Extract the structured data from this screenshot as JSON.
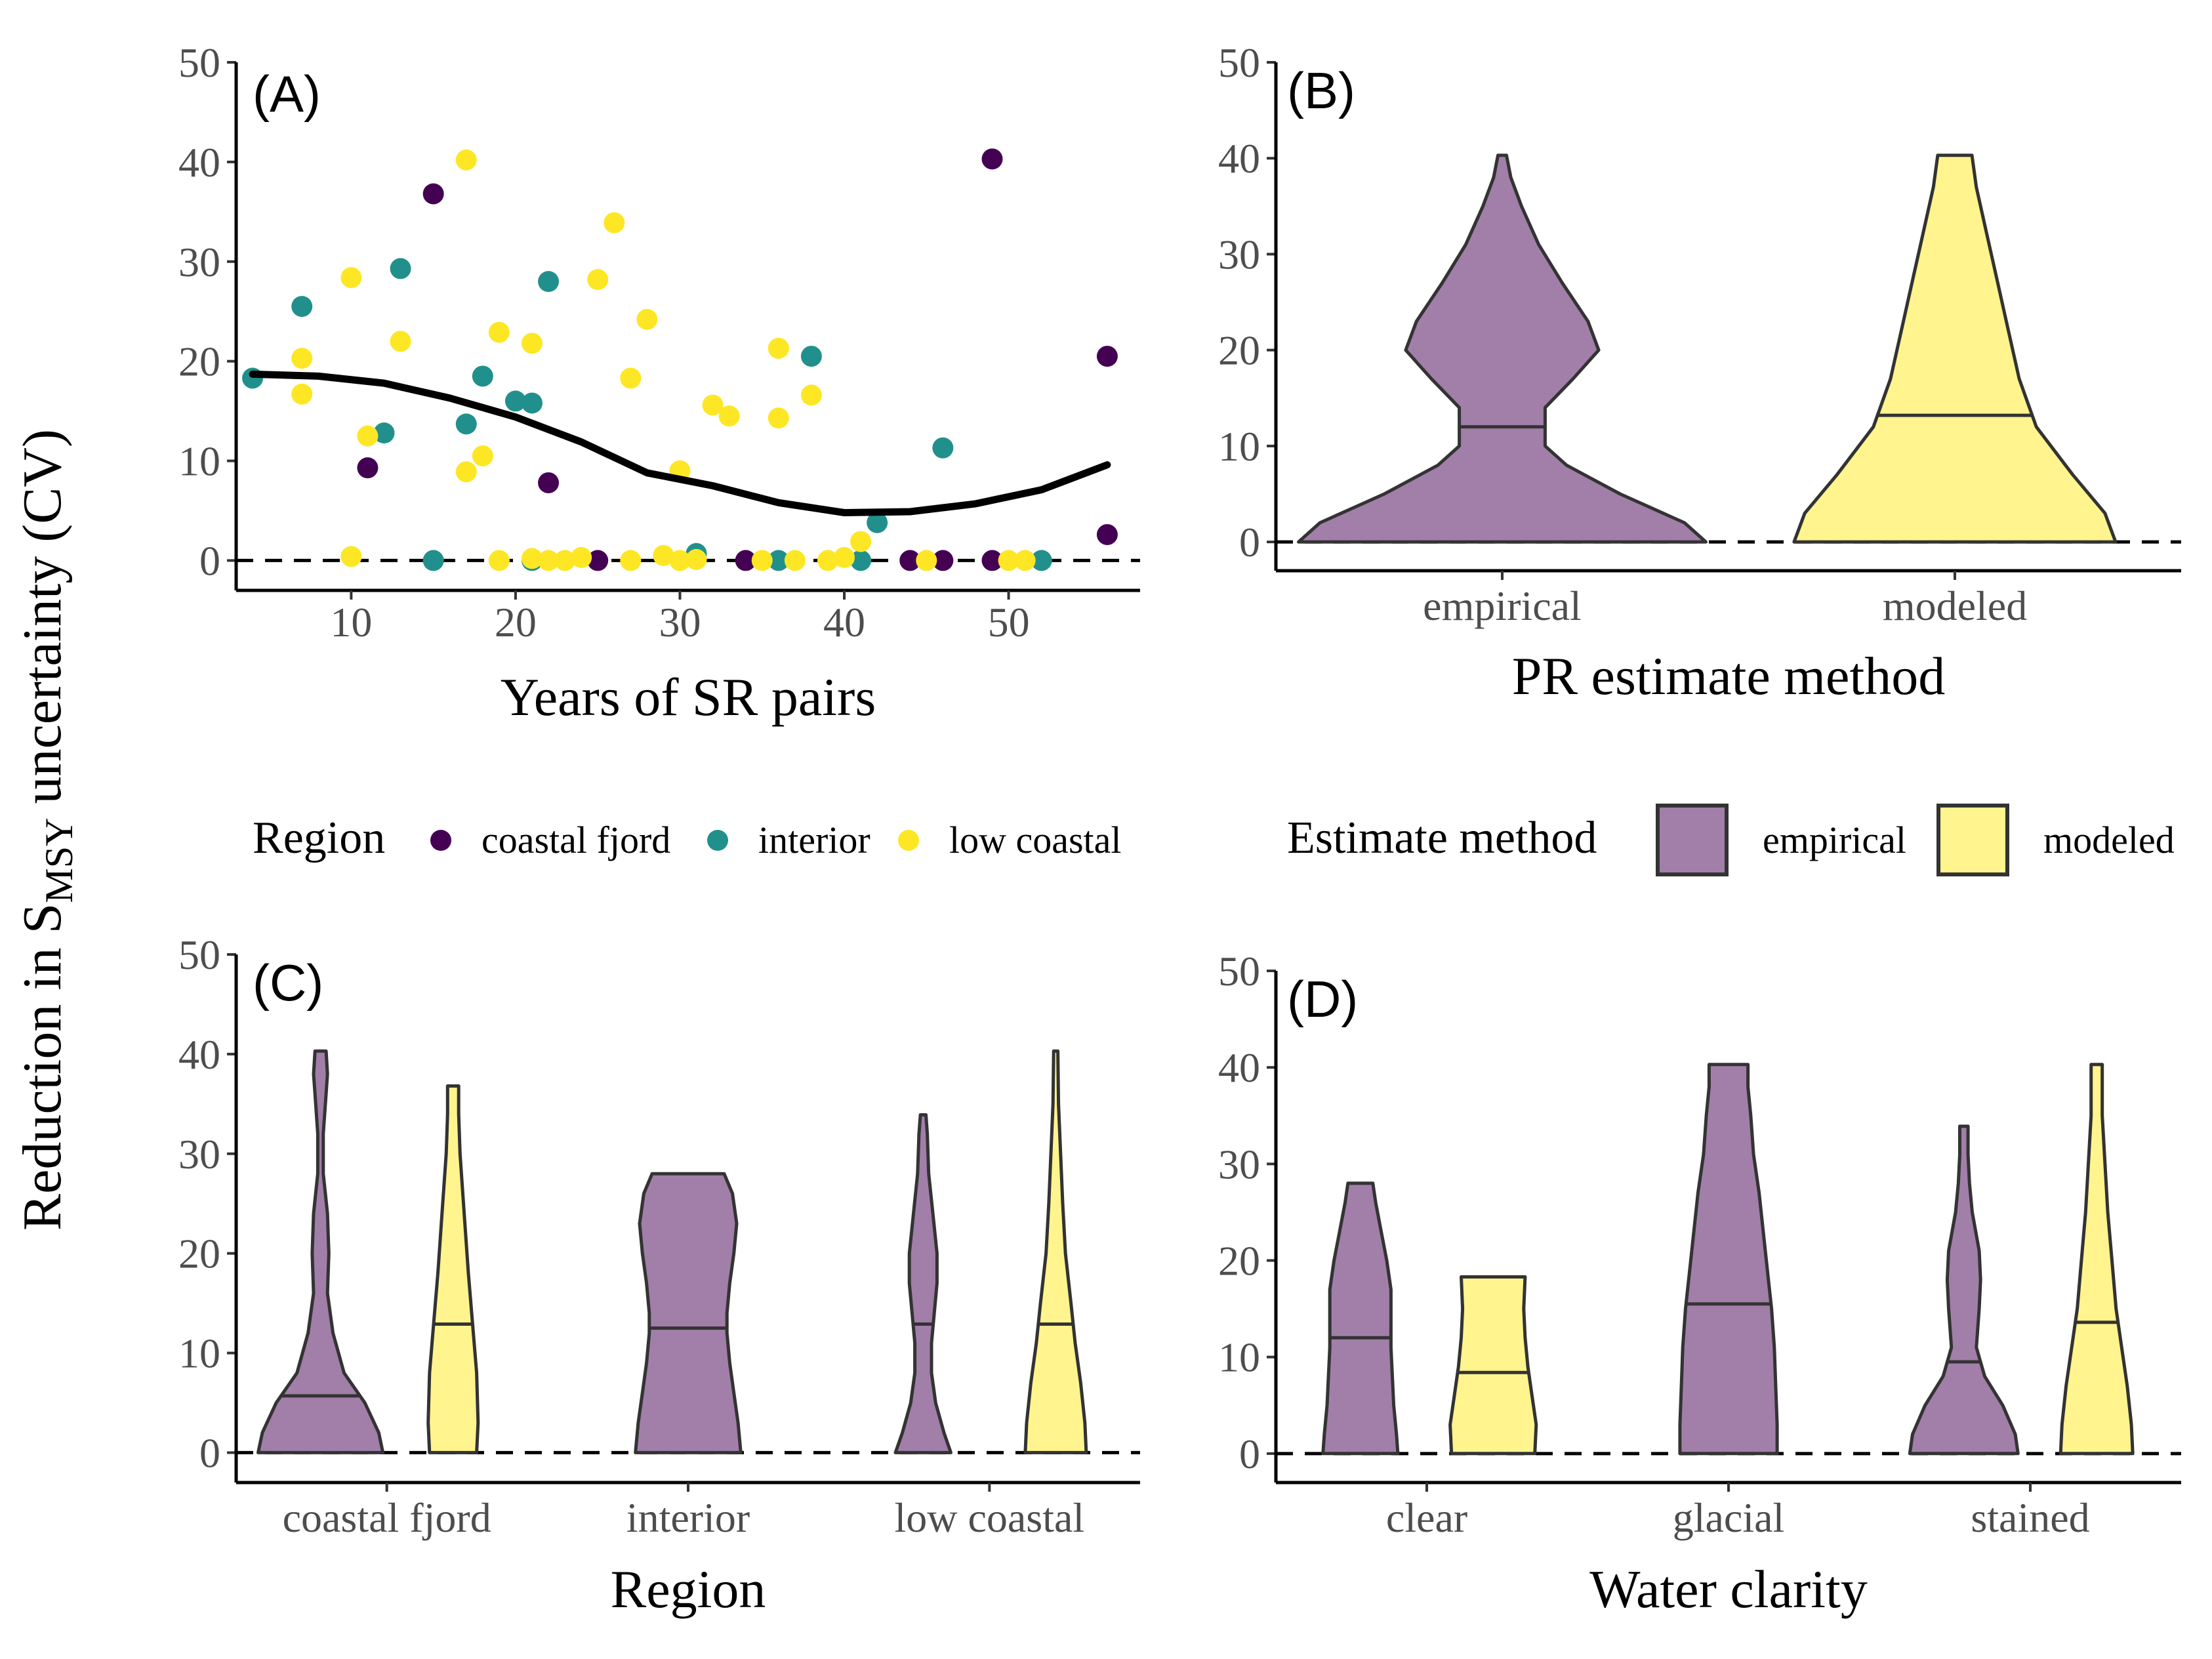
{
  "figure": {
    "ylabel_main": "Reduction in S",
    "ylabel_sub": "MSY",
    "ylabel_tail": " uncertainty (CV)"
  },
  "colors": {
    "coastal_fjord": "#440154",
    "interior": "#21908C",
    "low_coastal": "#FDE725",
    "empirical_fill": "#A17FA9",
    "modeled_fill": "#FFF48E",
    "violin_stroke": "#333333",
    "smooth_line": "#000000"
  },
  "legends": {
    "region": {
      "title": "Region",
      "items": [
        {
          "label": "coastal fjord",
          "color": "#440154"
        },
        {
          "label": "interior",
          "color": "#21908C"
        },
        {
          "label": "low coastal",
          "color": "#FDE725"
        }
      ]
    },
    "method": {
      "title": "Estimate method",
      "items": [
        {
          "label": "empirical",
          "color": "#A17FA9"
        },
        {
          "label": "modeled",
          "color": "#FFF48E"
        }
      ]
    }
  },
  "chart_data": [
    {
      "panel": "(A)",
      "type": "scatter",
      "xlabel": "Years of SR pairs",
      "ylabel": "",
      "xlim": [
        3,
        58
      ],
      "ylim": [
        -3,
        50
      ],
      "xticks": [
        10,
        20,
        30,
        40,
        50
      ],
      "yticks": [
        0,
        10,
        20,
        30,
        40,
        50
      ],
      "reference_line": 0,
      "series": [
        {
          "name": "coastal fjord",
          "points": [
            [
              11,
              9.3
            ],
            [
              15,
              36.8
            ],
            [
              22,
              7.8
            ],
            [
              25,
              0
            ],
            [
              34,
              0
            ],
            [
              44,
              0
            ],
            [
              46,
              0
            ],
            [
              49,
              40.3
            ],
            [
              49,
              0
            ],
            [
              56,
              20.5
            ],
            [
              56,
              2.6
            ]
          ]
        },
        {
          "name": "interior",
          "points": [
            [
              4,
              18.3
            ],
            [
              7,
              25.5
            ],
            [
              12,
              12.8
            ],
            [
              13,
              29.3
            ],
            [
              15,
              0
            ],
            [
              17,
              13.7
            ],
            [
              18,
              18.5
            ],
            [
              20,
              16
            ],
            [
              21,
              15.8
            ],
            [
              21,
              0
            ],
            [
              22,
              28
            ],
            [
              31,
              0.7
            ],
            [
              36,
              0
            ],
            [
              38,
              20.5
            ],
            [
              41,
              0
            ],
            [
              42,
              3.8
            ],
            [
              46,
              11.3
            ],
            [
              52,
              0
            ]
          ]
        },
        {
          "name": "low coastal",
          "points": [
            [
              7,
              20.3
            ],
            [
              7,
              16.7
            ],
            [
              10,
              28.4
            ],
            [
              10,
              0.4
            ],
            [
              11,
              12.5
            ],
            [
              13,
              22
            ],
            [
              17,
              40.2
            ],
            [
              17,
              8.9
            ],
            [
              18,
              10.5
            ],
            [
              19,
              22.9
            ],
            [
              19,
              0
            ],
            [
              21,
              21.8
            ],
            [
              21,
              0.2
            ],
            [
              22,
              0
            ],
            [
              23,
              0
            ],
            [
              24,
              0.3
            ],
            [
              25,
              28.2
            ],
            [
              26,
              33.9
            ],
            [
              27,
              18.3
            ],
            [
              27,
              0
            ],
            [
              28,
              24.2
            ],
            [
              29,
              0.5
            ],
            [
              30,
              9
            ],
            [
              30,
              0
            ],
            [
              31,
              0.1
            ],
            [
              32,
              15.6
            ],
            [
              33,
              14.5
            ],
            [
              35,
              0
            ],
            [
              36,
              21.3
            ],
            [
              36,
              14.3
            ],
            [
              37,
              0
            ],
            [
              38,
              16.6
            ],
            [
              39,
              0
            ],
            [
              40,
              0.3
            ],
            [
              41,
              1.9
            ],
            [
              45,
              0
            ],
            [
              50,
              0
            ],
            [
              51,
              0
            ]
          ]
        }
      ],
      "smooth": [
        [
          4,
          18.7
        ],
        [
          8,
          18.5
        ],
        [
          12,
          17.8
        ],
        [
          16,
          16.3
        ],
        [
          20,
          14.4
        ],
        [
          24,
          11.9
        ],
        [
          28,
          8.8
        ],
        [
          32,
          7.5
        ],
        [
          36,
          5.8
        ],
        [
          40,
          4.8
        ],
        [
          44,
          4.9
        ],
        [
          48,
          5.7
        ],
        [
          52,
          7.1
        ],
        [
          56,
          9.6
        ]
      ]
    },
    {
      "panel": "(B)",
      "type": "violin",
      "xlabel": "PR estimate method",
      "ylabel": "",
      "ylim": [
        -3,
        50
      ],
      "yticks": [
        0,
        10,
        20,
        30,
        40,
        50
      ],
      "reference_line": 0,
      "categories": [
        "empirical",
        "modeled"
      ],
      "violins": [
        {
          "category": "empirical",
          "method": "empirical",
          "median": 12,
          "profile": [
            [
              0,
              0.95
            ],
            [
              2,
              0.85
            ],
            [
              5,
              0.55
            ],
            [
              8,
              0.3
            ],
            [
              10,
              0.2
            ],
            [
              14,
              0.2
            ],
            [
              17,
              0.33
            ],
            [
              20,
              0.45
            ],
            [
              23,
              0.4
            ],
            [
              27,
              0.28
            ],
            [
              31,
              0.17
            ],
            [
              35,
              0.09
            ],
            [
              38,
              0.04
            ],
            [
              40.3,
              0.02
            ]
          ]
        },
        {
          "category": "modeled",
          "method": "modeled",
          "median": 13.2,
          "profile": [
            [
              0,
              0.75
            ],
            [
              3,
              0.7
            ],
            [
              7,
              0.55
            ],
            [
              12,
              0.38
            ],
            [
              17,
              0.3
            ],
            [
              22,
              0.25
            ],
            [
              27,
              0.2
            ],
            [
              32,
              0.15
            ],
            [
              37,
              0.1
            ],
            [
              40.3,
              0.08
            ]
          ]
        }
      ]
    },
    {
      "panel": "(C)",
      "type": "violin",
      "xlabel": "Region",
      "ylabel": "",
      "ylim": [
        -3,
        50
      ],
      "yticks": [
        0,
        10,
        20,
        30,
        40,
        50
      ],
      "reference_line": 0,
      "categories": [
        "coastal fjord",
        "interior",
        "low coastal"
      ],
      "violins": [
        {
          "category": "coastal fjord",
          "method": "empirical",
          "median": 5.7,
          "profile": [
            [
              0,
              0.45
            ],
            [
              2,
              0.42
            ],
            [
              5,
              0.32
            ],
            [
              8,
              0.17
            ],
            [
              12,
              0.09
            ],
            [
              16,
              0.05
            ],
            [
              20,
              0.06
            ],
            [
              24,
              0.05
            ],
            [
              28,
              0.02
            ],
            [
              32,
              0.02
            ],
            [
              36,
              0.04
            ],
            [
              38,
              0.05
            ],
            [
              40.3,
              0.04
            ]
          ]
        },
        {
          "category": "coastal fjord",
          "method": "modeled",
          "median": 12.9,
          "profile": [
            [
              0,
              0.17
            ],
            [
              3,
              0.18
            ],
            [
              8,
              0.17
            ],
            [
              13,
              0.14
            ],
            [
              18,
              0.11
            ],
            [
              24,
              0.08
            ],
            [
              30,
              0.05
            ],
            [
              34,
              0.04
            ],
            [
              36.8,
              0.04
            ]
          ]
        },
        {
          "category": "interior",
          "method": "empirical",
          "median": 12.5,
          "profile": [
            [
              0,
              0.38
            ],
            [
              3,
              0.36
            ],
            [
              6,
              0.33
            ],
            [
              9,
              0.3
            ],
            [
              12,
              0.28
            ],
            [
              14,
              0.28
            ],
            [
              17,
              0.3
            ],
            [
              20,
              0.33
            ],
            [
              23,
              0.35
            ],
            [
              26,
              0.32
            ],
            [
              28,
              0.26
            ]
          ]
        },
        {
          "category": "low coastal",
          "method": "empirical",
          "median": 12.9,
          "profile": [
            [
              0,
              0.2
            ],
            [
              2,
              0.15
            ],
            [
              5,
              0.09
            ],
            [
              8,
              0.06
            ],
            [
              11,
              0.06
            ],
            [
              14,
              0.08
            ],
            [
              17,
              0.1
            ],
            [
              20,
              0.1
            ],
            [
              24,
              0.07
            ],
            [
              28,
              0.04
            ],
            [
              32,
              0.03
            ],
            [
              33.9,
              0.02
            ]
          ]
        },
        {
          "category": "low coastal",
          "method": "modeled",
          "median": 12.9,
          "profile": [
            [
              0,
              0.22
            ],
            [
              3,
              0.21
            ],
            [
              7,
              0.18
            ],
            [
              11,
              0.14
            ],
            [
              15,
              0.11
            ],
            [
              20,
              0.07
            ],
            [
              25,
              0.05
            ],
            [
              30,
              0.035
            ],
            [
              35,
              0.02
            ],
            [
              40.3,
              0.015
            ]
          ]
        }
      ]
    },
    {
      "panel": "(D)",
      "type": "violin",
      "xlabel": "Water clarity",
      "ylabel": "",
      "ylim": [
        -3,
        50
      ],
      "yticks": [
        0,
        10,
        20,
        30,
        40,
        50
      ],
      "reference_line": 0,
      "categories": [
        "clear",
        "glacial",
        "stained"
      ],
      "violins": [
        {
          "category": "clear",
          "method": "empirical",
          "median": 12,
          "profile": [
            [
              0,
              0.27
            ],
            [
              2,
              0.26
            ],
            [
              5,
              0.24
            ],
            [
              8,
              0.23
            ],
            [
              11,
              0.22
            ],
            [
              14,
              0.22
            ],
            [
              17,
              0.22
            ],
            [
              20,
              0.19
            ],
            [
              23,
              0.15
            ],
            [
              26,
              0.11
            ],
            [
              28,
              0.09
            ]
          ]
        },
        {
          "category": "clear",
          "method": "modeled",
          "median": 8.4,
          "profile": [
            [
              0,
              0.3
            ],
            [
              3,
              0.31
            ],
            [
              6,
              0.28
            ],
            [
              9,
              0.25
            ],
            [
              12,
              0.23
            ],
            [
              15,
              0.22
            ],
            [
              18.3,
              0.23
            ]
          ]
        },
        {
          "category": "glacial",
          "method": "empirical",
          "median": 15.5,
          "profile": [
            [
              0,
              0.35
            ],
            [
              3,
              0.35
            ],
            [
              7,
              0.34
            ],
            [
              11,
              0.33
            ],
            [
              15,
              0.31
            ],
            [
              19,
              0.28
            ],
            [
              23,
              0.25
            ],
            [
              27,
              0.22
            ],
            [
              31,
              0.18
            ],
            [
              35,
              0.16
            ],
            [
              38,
              0.14
            ],
            [
              40.3,
              0.14
            ]
          ]
        },
        {
          "category": "stained",
          "method": "empirical",
          "median": 9.5,
          "profile": [
            [
              0,
              0.39
            ],
            [
              2,
              0.37
            ],
            [
              5,
              0.28
            ],
            [
              8,
              0.15
            ],
            [
              11,
              0.09
            ],
            [
              15,
              0.11
            ],
            [
              18,
              0.12
            ],
            [
              21,
              0.11
            ],
            [
              25,
              0.06
            ],
            [
              28,
              0.04
            ],
            [
              31,
              0.03
            ],
            [
              33.9,
              0.03
            ]
          ]
        },
        {
          "category": "stained",
          "method": "modeled",
          "median": 13.6,
          "profile": [
            [
              0,
              0.26
            ],
            [
              3,
              0.25
            ],
            [
              7,
              0.22
            ],
            [
              11,
              0.18
            ],
            [
              15,
              0.14
            ],
            [
              20,
              0.11
            ],
            [
              25,
              0.08
            ],
            [
              30,
              0.06
            ],
            [
              35,
              0.04
            ],
            [
              40.3,
              0.04
            ]
          ]
        }
      ]
    }
  ]
}
